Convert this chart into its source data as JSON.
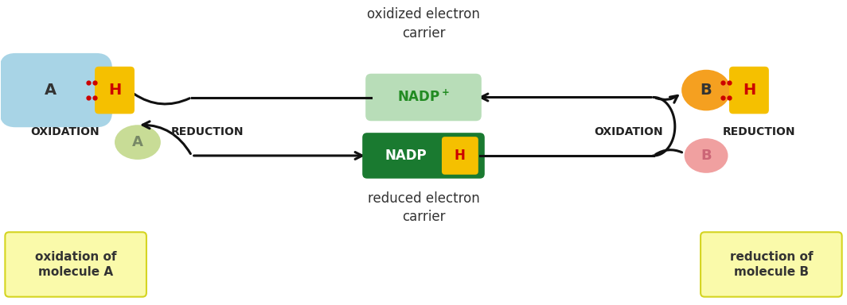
{
  "bg_color": "#ffffff",
  "fig_width": 10.64,
  "fig_height": 3.84,
  "mol_A_full_color": "#a8d4e6",
  "mol_A_empty_color": "#c8dc96",
  "mol_B_full_color": "#f5a020",
  "mol_B_empty_color": "#f0a0a0",
  "H_box_color": "#f5c000",
  "H_text_color": "#cc0000",
  "dot_color": "#cc0000",
  "nadp_plus_bg": "#b8ddb8",
  "nadp_plus_text_color": "#228b22",
  "nadpH_bg": "#1a7a30",
  "nadpH_text_color": "#ffffff",
  "nadpH_H_box": "#f5c000",
  "nadpH_H_text": "#cc0000",
  "yellow_box_color": "#fafaaa",
  "yellow_box_edge": "#d4d420",
  "label_color": "#222222",
  "arrow_color": "#111111",
  "top_label": "oxidized electron\ncarrier",
  "bottom_label": "reduced electron\ncarrier",
  "left_box_label": "oxidation of\nmolecule A",
  "right_box_label": "reduction of\nmolecule B"
}
